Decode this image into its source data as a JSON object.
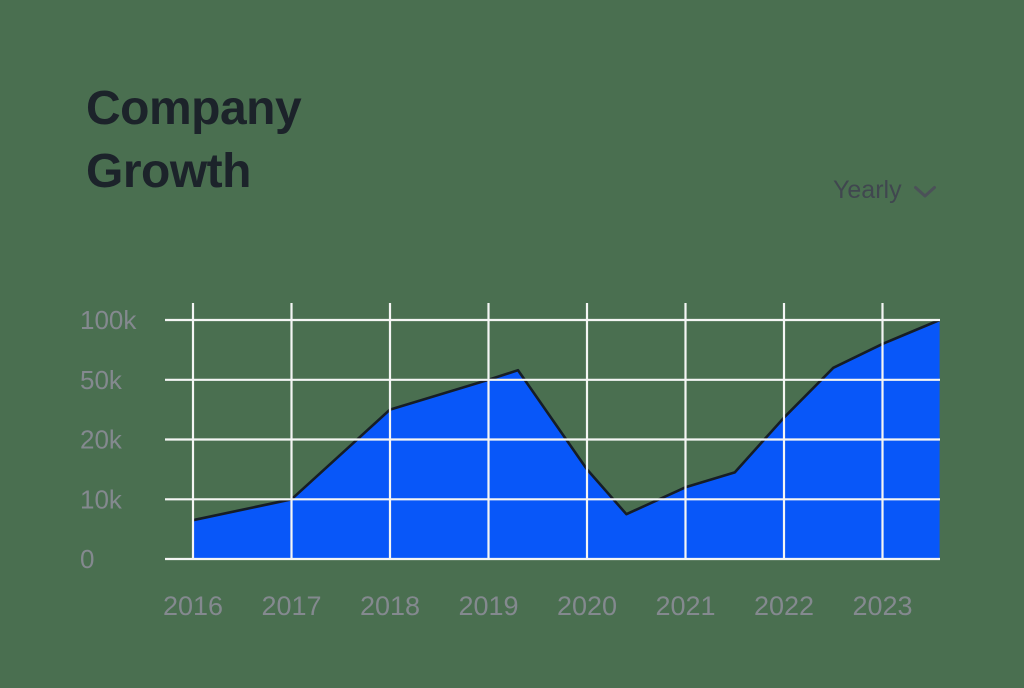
{
  "page": {
    "title": "Company Growth",
    "background_color": "#4A6F50",
    "title_color": "#1C232A"
  },
  "controls": {
    "period_selector": {
      "label": "Yearly",
      "icon": "chevron-down-icon",
      "text_color": "#40474F",
      "icon_color": "#4B5158"
    }
  },
  "chart_data": {
    "type": "area",
    "title": "Company Growth",
    "period": "Yearly",
    "x_tick_values": [
      2016,
      2017,
      2018,
      2019,
      2020,
      2021,
      2022,
      2023
    ],
    "x_tick_labels": [
      "2016",
      "2017",
      "2018",
      "2019",
      "2020",
      "2021",
      "2022",
      "2023"
    ],
    "y_tick_values": [
      0,
      10000,
      20000,
      50000,
      100000
    ],
    "y_tick_labels": [
      "0",
      "10k",
      "20k",
      "50k",
      "100k"
    ],
    "y_scale": "piecewise-linear-even-ticks",
    "grid": true,
    "legend": false,
    "baseline": 0,
    "x_range": [
      2015.72,
      2023.58
    ],
    "points": [
      {
        "x": 2016,
        "y": 6500
      },
      {
        "x": 2017,
        "y": 10000
      },
      {
        "x": 2018,
        "y": 35000
      },
      {
        "x": 2019,
        "y": 50000
      },
      {
        "x": 2019.3,
        "y": 58000
      },
      {
        "x": 2020,
        "y": 15000
      },
      {
        "x": 2020.4,
        "y": 7500
      },
      {
        "x": 2021,
        "y": 12000
      },
      {
        "x": 2021.5,
        "y": 14500
      },
      {
        "x": 2022,
        "y": 31000
      },
      {
        "x": 2022.5,
        "y": 60000
      },
      {
        "x": 2023,
        "y": 80000
      },
      {
        "x": 2023.58,
        "y": 100000
      }
    ],
    "colors": {
      "fill": "#0857F9",
      "stroke": "#161D26",
      "gridline": "#F4F5F4",
      "axis_label": "#84898F"
    }
  }
}
